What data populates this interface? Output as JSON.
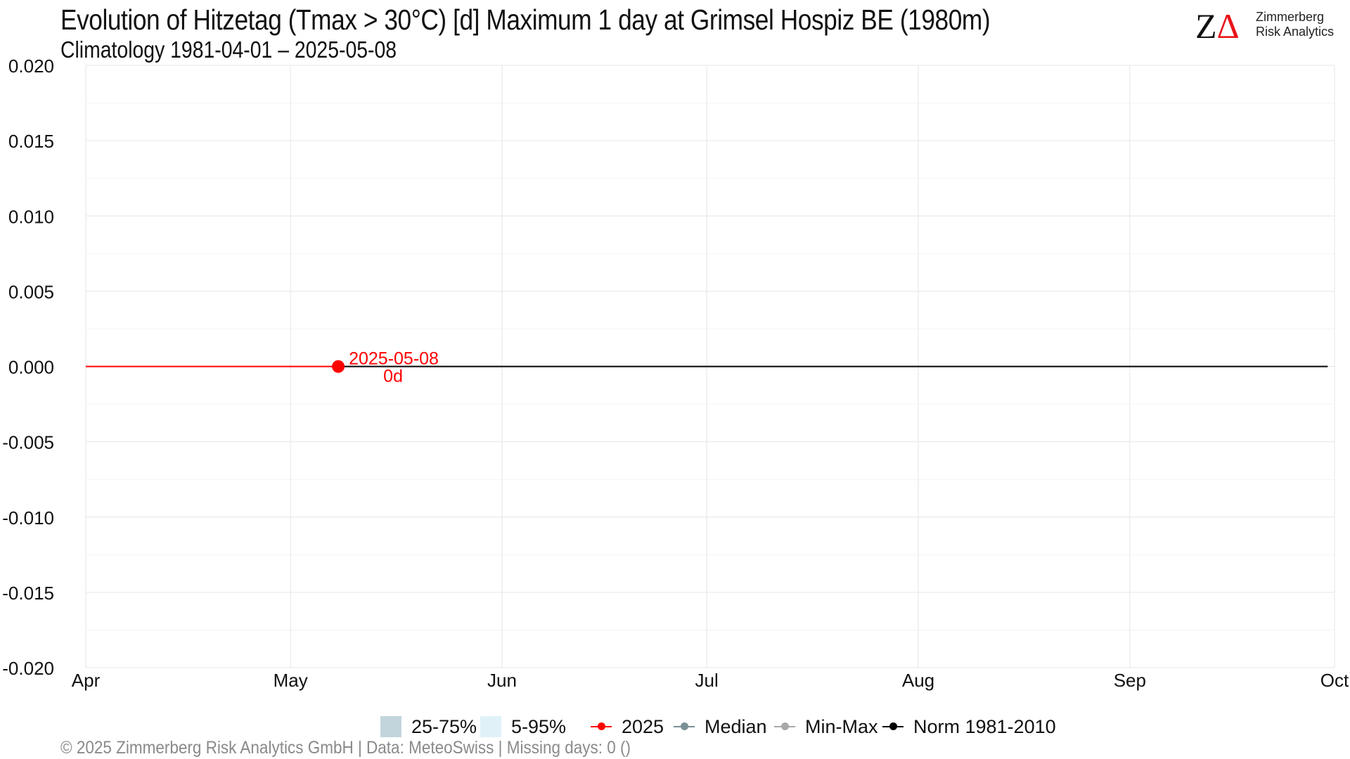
{
  "header": {
    "title": "Evolution of Hitzetag (Tmax > 30°C) [d] Maximum 1 day at Grimsel Hospiz  BE (1980m)",
    "subtitle": "Climatology 1981-04-01 – 2025-05-08"
  },
  "logo": {
    "mark_z": "Z",
    "mark_delta": "Δ",
    "line1": "Zimmerberg",
    "line2": "Risk Analytics",
    "delta_color": "#e8141a"
  },
  "footer": {
    "text": "©  2025 Zimmerberg Risk Analytics GmbH | Data: MeteoSwiss | Missing days: 0 ()"
  },
  "legend": {
    "items": [
      {
        "label": "25-75%",
        "kind": "fill",
        "color": "#c2d5dc"
      },
      {
        "label": "5-95%",
        "kind": "fill",
        "color": "#e0f2f8"
      },
      {
        "label": "2025",
        "kind": "line",
        "color": "#ff0000"
      },
      {
        "label": "Median",
        "kind": "line",
        "color": "#7a8f96"
      },
      {
        "label": "Min-Max",
        "kind": "line",
        "color": "#a8a8a8"
      },
      {
        "label": "Norm 1981-2010",
        "kind": "line",
        "color": "#000000"
      }
    ]
  },
  "chart_data": {
    "type": "line",
    "x_axis": {
      "type": "date",
      "range": [
        "2025-04-01",
        "2025-10-01"
      ],
      "ticks": [
        {
          "date": "2025-04-01",
          "label": "Apr"
        },
        {
          "date": "2025-05-01",
          "label": "May"
        },
        {
          "date": "2025-06-01",
          "label": "Jun"
        },
        {
          "date": "2025-07-01",
          "label": "Jul"
        },
        {
          "date": "2025-08-01",
          "label": "Aug"
        },
        {
          "date": "2025-09-01",
          "label": "Sep"
        },
        {
          "date": "2025-10-01",
          "label": "Oct"
        }
      ]
    },
    "y_axis": {
      "range": [
        -0.02,
        0.02
      ],
      "ticks": [
        {
          "value": 0.02,
          "label": "0.020"
        },
        {
          "value": 0.015,
          "label": "0.015"
        },
        {
          "value": 0.01,
          "label": "0.010"
        },
        {
          "value": 0.005,
          "label": "0.005"
        },
        {
          "value": 0,
          "label": "0.000"
        },
        {
          "value": -0.005,
          "label": "-0.005"
        },
        {
          "value": -0.01,
          "label": "-0.010"
        },
        {
          "value": -0.015,
          "label": "-0.015"
        },
        {
          "value": -0.02,
          "label": "-0.020"
        }
      ]
    },
    "grid": true,
    "legend_position": "bottom",
    "series": [
      {
        "name": "Norm 1981-2010",
        "color": "#000000",
        "points": [
          {
            "x": "2025-04-01",
            "y": 0
          },
          {
            "x": "2025-09-30",
            "y": 0
          }
        ]
      },
      {
        "name": "2025",
        "color": "#ff0000",
        "points": [
          {
            "x": "2025-04-01",
            "y": 0
          },
          {
            "x": "2025-05-08",
            "y": 0
          }
        ]
      }
    ],
    "highlight": {
      "x": "2025-05-08",
      "y": 0,
      "color": "#ff0000",
      "label_date": "2025-05-08",
      "label_value": "0d"
    }
  }
}
